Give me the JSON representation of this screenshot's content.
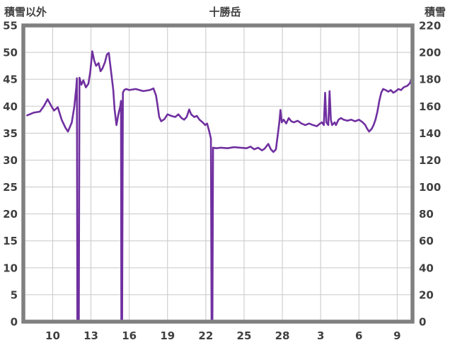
{
  "header": {
    "left_axis_title": "積雪以外",
    "chart_title": "十勝岳",
    "right_axis_title": "積雪"
  },
  "colors": {
    "line": "#7030A0",
    "grid": "#c8c8c8",
    "frame": "#808080",
    "text": "#404040",
    "plot_background": "#ffffff"
  },
  "chart_data": {
    "type": "line",
    "title": "十勝岳",
    "legend": "none",
    "grid": "on",
    "left_axis": {
      "label": "積雪以外",
      "min": 0,
      "max": 55,
      "step": 5,
      "ticks": [
        "55",
        "50",
        "45",
        "40",
        "35",
        "30",
        "25",
        "20",
        "15",
        "10",
        "5",
        "0"
      ]
    },
    "right_axis": {
      "label": "積雪",
      "min": 0,
      "max": 220,
      "step": 20,
      "ticks": [
        "220",
        "200",
        "180",
        "160",
        "140",
        "120",
        "100",
        "80",
        "60",
        "40",
        "20",
        "0"
      ]
    },
    "x_axis": {
      "domain_min": 7.7,
      "domain_max": 38.2,
      "ticks": [
        {
          "v": 10,
          "label": "10"
        },
        {
          "v": 13,
          "label": "13"
        },
        {
          "v": 16,
          "label": "16"
        },
        {
          "v": 19,
          "label": "19"
        },
        {
          "v": 22,
          "label": "22"
        },
        {
          "v": 25,
          "label": "25"
        },
        {
          "v": 28,
          "label": "28"
        },
        {
          "v": 31,
          "label": "3"
        },
        {
          "v": 34,
          "label": "6"
        },
        {
          "v": 37,
          "label": "9"
        }
      ]
    },
    "series": [
      {
        "name": "積雪",
        "values_axis": "left",
        "right_axis_scale": 4,
        "points": [
          [
            8.0,
            38.3
          ],
          [
            8.5,
            38.8
          ],
          [
            9.0,
            39.0
          ],
          [
            9.3,
            40.0
          ],
          [
            9.6,
            41.3
          ],
          [
            9.9,
            40.0
          ],
          [
            10.1,
            39.2
          ],
          [
            10.4,
            39.8
          ],
          [
            10.7,
            37.5
          ],
          [
            11.0,
            36.0
          ],
          [
            11.2,
            35.3
          ],
          [
            11.5,
            37.0
          ],
          [
            11.7,
            40.0
          ],
          [
            11.85,
            43.5
          ],
          [
            11.9,
            45.2
          ],
          [
            11.93,
            0
          ],
          [
            12.05,
            0
          ],
          [
            12.1,
            45.3
          ],
          [
            12.25,
            44.0
          ],
          [
            12.4,
            44.8
          ],
          [
            12.6,
            43.5
          ],
          [
            12.8,
            44.2
          ],
          [
            12.95,
            46.5
          ],
          [
            13.1,
            50.2
          ],
          [
            13.25,
            48.5
          ],
          [
            13.4,
            47.5
          ],
          [
            13.6,
            48.0
          ],
          [
            13.75,
            46.5
          ],
          [
            13.9,
            47.0
          ],
          [
            14.1,
            48.2
          ],
          [
            14.25,
            49.6
          ],
          [
            14.4,
            49.9
          ],
          [
            14.6,
            46.0
          ],
          [
            14.75,
            43.0
          ],
          [
            14.85,
            39.5
          ],
          [
            15.0,
            36.5
          ],
          [
            15.15,
            38.5
          ],
          [
            15.3,
            40.0
          ],
          [
            15.35,
            41.0
          ],
          [
            15.38,
            0
          ],
          [
            15.44,
            0
          ],
          [
            15.5,
            42.5
          ],
          [
            15.6,
            43.0
          ],
          [
            15.75,
            43.2
          ],
          [
            16.0,
            43.0
          ],
          [
            16.5,
            43.2
          ],
          [
            17.1,
            42.8
          ],
          [
            17.6,
            43.0
          ],
          [
            17.9,
            43.3
          ],
          [
            18.1,
            42.0
          ],
          [
            18.2,
            40.5
          ],
          [
            18.35,
            38.0
          ],
          [
            18.5,
            37.2
          ],
          [
            18.75,
            37.6
          ],
          [
            19.0,
            38.5
          ],
          [
            19.3,
            38.2
          ],
          [
            19.6,
            38.0
          ],
          [
            19.85,
            38.5
          ],
          [
            20.1,
            37.8
          ],
          [
            20.3,
            37.5
          ],
          [
            20.5,
            38.0
          ],
          [
            20.7,
            39.4
          ],
          [
            20.85,
            38.5
          ],
          [
            21.1,
            38.0
          ],
          [
            21.3,
            38.2
          ],
          [
            21.5,
            37.5
          ],
          [
            21.75,
            37.0
          ],
          [
            21.95,
            36.5
          ],
          [
            22.1,
            36.8
          ],
          [
            22.25,
            35.5
          ],
          [
            22.4,
            34.0
          ],
          [
            22.45,
            0
          ],
          [
            22.52,
            0
          ],
          [
            22.57,
            32.3
          ],
          [
            22.8,
            32.2
          ],
          [
            23.2,
            32.3
          ],
          [
            23.7,
            32.2
          ],
          [
            24.2,
            32.4
          ],
          [
            24.7,
            32.3
          ],
          [
            25.2,
            32.2
          ],
          [
            25.5,
            32.5
          ],
          [
            25.8,
            32.0
          ],
          [
            26.1,
            32.3
          ],
          [
            26.4,
            31.8
          ],
          [
            26.6,
            32.1
          ],
          [
            26.9,
            33.0
          ],
          [
            27.1,
            32.0
          ],
          [
            27.3,
            31.5
          ],
          [
            27.5,
            32.0
          ],
          [
            27.75,
            36.8
          ],
          [
            27.85,
            39.3
          ],
          [
            27.95,
            37.0
          ],
          [
            28.1,
            37.5
          ],
          [
            28.3,
            36.8
          ],
          [
            28.5,
            37.8
          ],
          [
            28.7,
            37.2
          ],
          [
            28.9,
            37.0
          ],
          [
            29.2,
            37.3
          ],
          [
            29.5,
            36.8
          ],
          [
            29.8,
            36.5
          ],
          [
            30.1,
            36.8
          ],
          [
            30.4,
            36.5
          ],
          [
            30.7,
            36.3
          ],
          [
            30.95,
            36.8
          ],
          [
            31.1,
            37.0
          ],
          [
            31.25,
            36.5
          ],
          [
            31.35,
            42.5
          ],
          [
            31.45,
            37.0
          ],
          [
            31.6,
            36.5
          ],
          [
            31.7,
            42.8
          ],
          [
            31.8,
            37.5
          ],
          [
            31.9,
            36.5
          ],
          [
            32.1,
            37.0
          ],
          [
            32.2,
            36.5
          ],
          [
            32.4,
            37.5
          ],
          [
            32.6,
            37.8
          ],
          [
            32.8,
            37.5
          ],
          [
            33.1,
            37.3
          ],
          [
            33.4,
            37.5
          ],
          [
            33.7,
            37.2
          ],
          [
            34.0,
            37.5
          ],
          [
            34.3,
            37.0
          ],
          [
            34.5,
            36.5
          ],
          [
            34.65,
            35.8
          ],
          [
            34.8,
            35.3
          ],
          [
            35.0,
            35.8
          ],
          [
            35.15,
            36.5
          ],
          [
            35.3,
            37.5
          ],
          [
            35.45,
            39.0
          ],
          [
            35.6,
            41.0
          ],
          [
            35.75,
            42.5
          ],
          [
            35.9,
            43.2
          ],
          [
            36.1,
            43.0
          ],
          [
            36.3,
            42.7
          ],
          [
            36.5,
            43.0
          ],
          [
            36.7,
            42.5
          ],
          [
            36.9,
            42.8
          ],
          [
            37.1,
            43.2
          ],
          [
            37.3,
            43.0
          ],
          [
            37.5,
            43.5
          ],
          [
            37.8,
            43.8
          ],
          [
            38.0,
            44.3
          ],
          [
            38.1,
            45.0
          ]
        ]
      }
    ]
  }
}
